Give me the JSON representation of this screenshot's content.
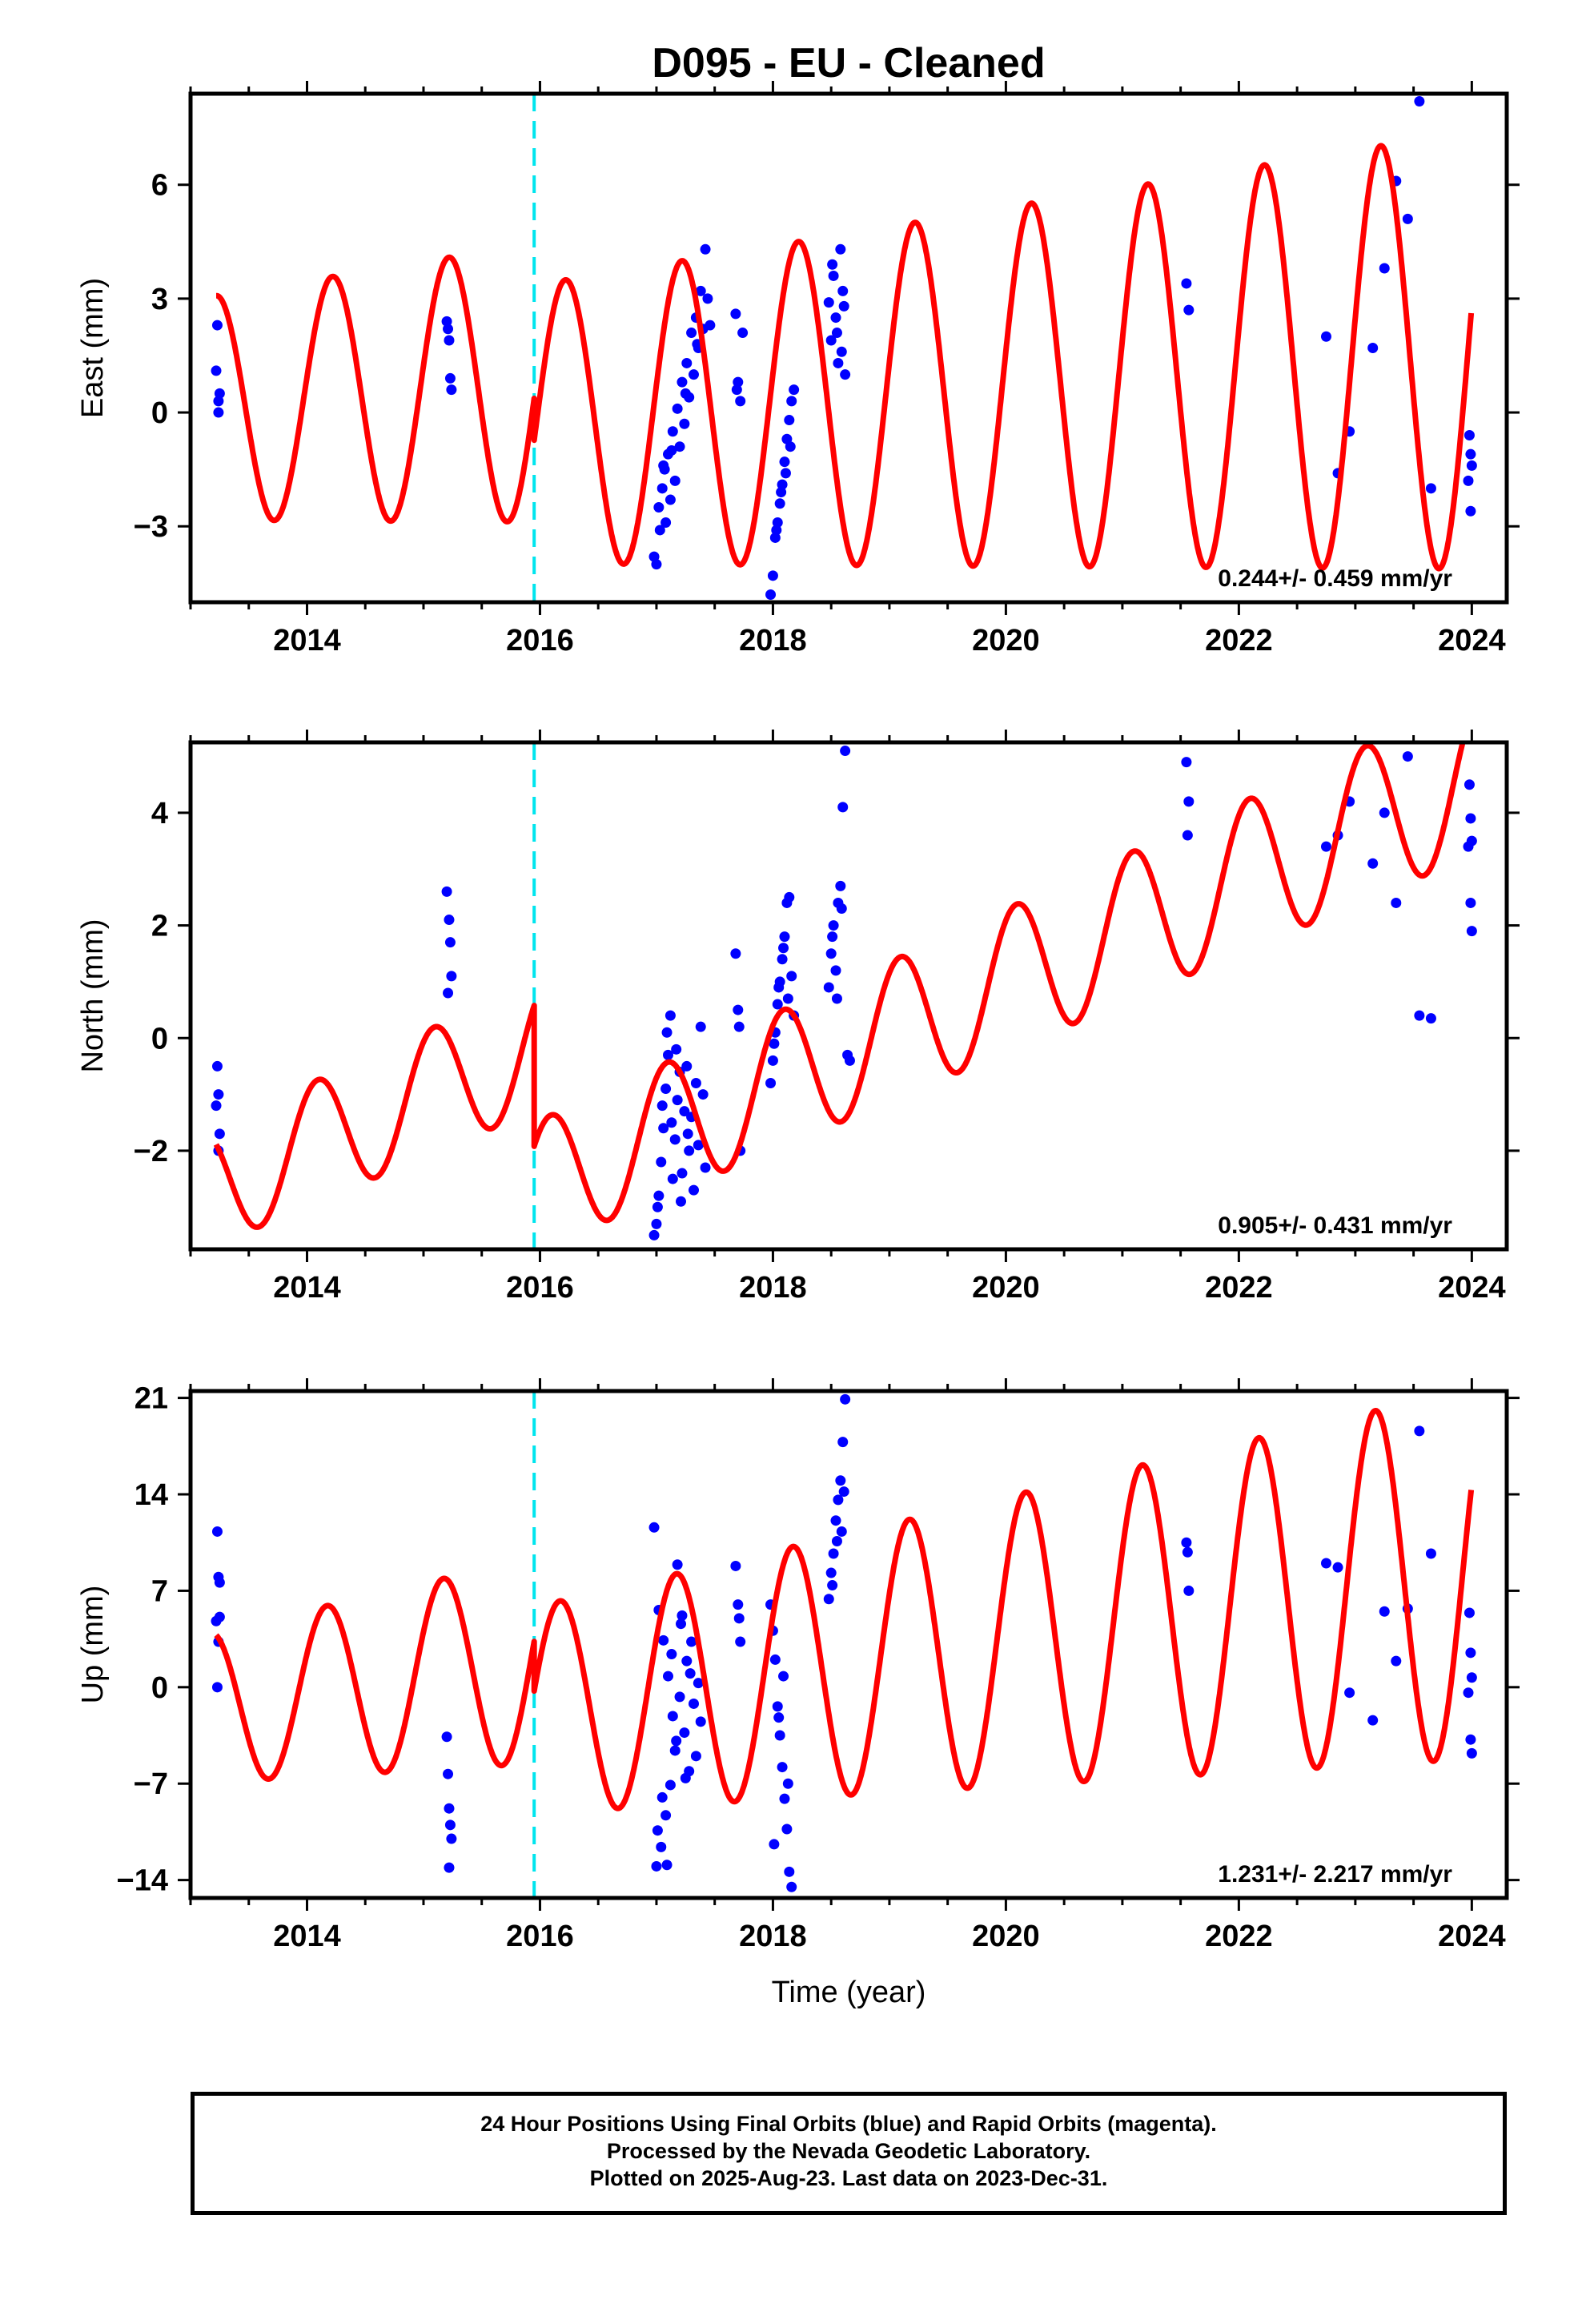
{
  "chart_data": {
    "type": "scatter",
    "title": "D095  - EU - Cleaned",
    "xlabel": "Time (year)",
    "xlim": [
      2013.0,
      2024.3
    ],
    "x_ticks": [
      2014,
      2016,
      2018,
      2020,
      2022,
      2024
    ],
    "x_tick_labels": [
      "2014",
      "2016",
      "2018",
      "2020",
      "2022",
      "2024"
    ],
    "event_line_x": 2015.95,
    "colors": {
      "data": "#0000ff",
      "model": "#ff0000",
      "event": "#00e5ee",
      "frame": "#000000"
    },
    "panels": [
      {
        "id": "east",
        "ylabel": "East (mm)",
        "ylim": [
          -5.0,
          8.4
        ],
        "y_ticks": [
          -3,
          0,
          3,
          6
        ],
        "y_tick_labels": [
          "−3",
          "0",
          "3",
          "6"
        ],
        "rate_label": "0.244+/- 0.459 mm/yr",
        "model": {
          "offset_pre": 0.8,
          "offset_post": -0.3,
          "trend": 0.244,
          "amplitude": 2.9,
          "amp_growth": 0.09,
          "phase": 0.2
        },
        "points": [
          [
            2013.23,
            2.3
          ],
          [
            2013.24,
            0.3
          ],
          [
            2013.25,
            0.5
          ],
          [
            2013.22,
            1.1
          ],
          [
            2013.24,
            0.0
          ],
          [
            2015.2,
            2.4
          ],
          [
            2015.22,
            1.9
          ],
          [
            2015.23,
            0.9
          ],
          [
            2015.24,
            0.6
          ],
          [
            2015.21,
            2.2
          ],
          [
            2016.98,
            -3.8
          ],
          [
            2017.0,
            -4.0
          ],
          [
            2017.02,
            -2.5
          ],
          [
            2017.05,
            -2.0
          ],
          [
            2017.06,
            -1.4
          ],
          [
            2017.08,
            -2.9
          ],
          [
            2017.1,
            -1.1
          ],
          [
            2017.12,
            -2.3
          ],
          [
            2017.14,
            -0.5
          ],
          [
            2017.16,
            -1.8
          ],
          [
            2017.18,
            0.1
          ],
          [
            2017.2,
            -0.9
          ],
          [
            2017.22,
            0.8
          ],
          [
            2017.24,
            -0.3
          ],
          [
            2017.26,
            1.3
          ],
          [
            2017.28,
            0.4
          ],
          [
            2017.3,
            2.1
          ],
          [
            2017.32,
            1.0
          ],
          [
            2017.34,
            2.5
          ],
          [
            2017.36,
            1.7
          ],
          [
            2017.38,
            3.2
          ],
          [
            2017.4,
            2.2
          ],
          [
            2017.42,
            4.3
          ],
          [
            2017.44,
            3.0
          ],
          [
            2017.46,
            2.3
          ],
          [
            2017.03,
            -3.1
          ],
          [
            2017.07,
            -1.5
          ],
          [
            2017.13,
            -1.0
          ],
          [
            2017.25,
            0.5
          ],
          [
            2017.35,
            1.8
          ],
          [
            2017.68,
            2.6
          ],
          [
            2017.7,
            0.8
          ],
          [
            2017.72,
            0.3
          ],
          [
            2017.74,
            2.1
          ],
          [
            2017.69,
            0.6
          ],
          [
            2017.98,
            -4.8
          ],
          [
            2018.0,
            -4.3
          ],
          [
            2018.02,
            -3.3
          ],
          [
            2018.04,
            -2.9
          ],
          [
            2018.06,
            -2.4
          ],
          [
            2018.08,
            -1.9
          ],
          [
            2018.1,
            -1.3
          ],
          [
            2018.12,
            -0.7
          ],
          [
            2018.14,
            -0.2
          ],
          [
            2018.16,
            0.3
          ],
          [
            2018.18,
            0.6
          ],
          [
            2018.03,
            -3.1
          ],
          [
            2018.07,
            -2.1
          ],
          [
            2018.11,
            -1.6
          ],
          [
            2018.15,
            -0.9
          ],
          [
            2018.48,
            2.9
          ],
          [
            2018.5,
            1.9
          ],
          [
            2018.52,
            3.6
          ],
          [
            2018.54,
            2.5
          ],
          [
            2018.56,
            1.3
          ],
          [
            2018.58,
            4.3
          ],
          [
            2018.6,
            3.2
          ],
          [
            2018.62,
            1.0
          ],
          [
            2018.51,
            3.9
          ],
          [
            2018.55,
            2.1
          ],
          [
            2018.59,
            1.6
          ],
          [
            2018.61,
            2.8
          ],
          [
            2021.55,
            3.4
          ],
          [
            2021.57,
            2.7
          ],
          [
            2022.75,
            2.0
          ],
          [
            2022.85,
            -1.6
          ],
          [
            2022.95,
            -0.5
          ],
          [
            2023.15,
            1.7
          ],
          [
            2023.25,
            3.8
          ],
          [
            2023.35,
            6.1
          ],
          [
            2023.45,
            5.1
          ],
          [
            2023.55,
            8.2
          ],
          [
            2023.65,
            -2.0
          ],
          [
            2023.98,
            -0.6
          ],
          [
            2023.99,
            -1.1
          ],
          [
            2024.0,
            -1.4
          ],
          [
            2023.97,
            -1.8
          ],
          [
            2023.99,
            -2.6
          ]
        ]
      },
      {
        "id": "north",
        "ylabel": "North (mm)",
        "ylim": [
          -3.75,
          5.25
        ],
        "y_ticks": [
          -2,
          0,
          2,
          4
        ],
        "y_tick_labels": [
          "−2",
          "0",
          "2",
          "4"
        ],
        "rate_label": "0.905+/- 0.431 mm/yr",
        "model": {
          "offset_pre": -0.1,
          "offset_post": -2.6,
          "trend": 0.905,
          "amplitude": 1.05,
          "amp_growth": 0.03,
          "phase": 1.0
        },
        "points": [
          [
            2013.23,
            -0.5
          ],
          [
            2013.24,
            -1.0
          ],
          [
            2013.25,
            -1.7
          ],
          [
            2013.22,
            -1.2
          ],
          [
            2013.24,
            -2.0
          ],
          [
            2015.2,
            2.6
          ],
          [
            2015.22,
            2.1
          ],
          [
            2015.23,
            1.7
          ],
          [
            2015.24,
            1.1
          ],
          [
            2015.21,
            0.8
          ],
          [
            2016.98,
            -3.5
          ],
          [
            2017.0,
            -3.3
          ],
          [
            2017.02,
            -2.8
          ],
          [
            2017.04,
            -2.2
          ],
          [
            2017.06,
            -1.6
          ],
          [
            2017.08,
            -0.9
          ],
          [
            2017.1,
            -0.3
          ],
          [
            2017.12,
            0.4
          ],
          [
            2017.14,
            -2.5
          ],
          [
            2017.16,
            -1.8
          ],
          [
            2017.18,
            -1.1
          ],
          [
            2017.2,
            -0.6
          ],
          [
            2017.22,
            -2.4
          ],
          [
            2017.24,
            -1.3
          ],
          [
            2017.26,
            -0.5
          ],
          [
            2017.28,
            -2.0
          ],
          [
            2017.3,
            -1.4
          ],
          [
            2017.32,
            -2.7
          ],
          [
            2017.34,
            -0.8
          ],
          [
            2017.36,
            -1.9
          ],
          [
            2017.38,
            0.2
          ],
          [
            2017.4,
            -1.0
          ],
          [
            2017.42,
            -2.3
          ],
          [
            2017.01,
            -3.0
          ],
          [
            2017.05,
            -1.2
          ],
          [
            2017.09,
            0.1
          ],
          [
            2017.13,
            -1.5
          ],
          [
            2017.17,
            -0.2
          ],
          [
            2017.21,
            -2.9
          ],
          [
            2017.27,
            -1.7
          ],
          [
            2017.68,
            1.5
          ],
          [
            2017.7,
            0.5
          ],
          [
            2017.72,
            -2.0
          ],
          [
            2017.71,
            0.2
          ],
          [
            2017.98,
            -0.8
          ],
          [
            2018.0,
            -0.4
          ],
          [
            2018.02,
            0.1
          ],
          [
            2018.04,
            0.6
          ],
          [
            2018.06,
            1.0
          ],
          [
            2018.08,
            1.4
          ],
          [
            2018.1,
            1.8
          ],
          [
            2018.12,
            2.4
          ],
          [
            2018.14,
            2.5
          ],
          [
            2018.16,
            1.1
          ],
          [
            2018.18,
            0.4
          ],
          [
            2018.01,
            -0.1
          ],
          [
            2018.05,
            0.9
          ],
          [
            2018.09,
            1.6
          ],
          [
            2018.13,
            0.7
          ],
          [
            2018.48,
            0.9
          ],
          [
            2018.5,
            1.5
          ],
          [
            2018.52,
            2.0
          ],
          [
            2018.54,
            1.2
          ],
          [
            2018.56,
            2.4
          ],
          [
            2018.58,
            2.7
          ],
          [
            2018.6,
            4.1
          ],
          [
            2018.62,
            5.1
          ],
          [
            2018.64,
            -0.3
          ],
          [
            2018.66,
            -0.4
          ],
          [
            2018.51,
            1.8
          ],
          [
            2018.55,
            0.7
          ],
          [
            2018.59,
            2.3
          ],
          [
            2021.55,
            4.9
          ],
          [
            2021.57,
            4.2
          ],
          [
            2021.56,
            3.6
          ],
          [
            2022.75,
            3.4
          ],
          [
            2022.85,
            3.6
          ],
          [
            2022.95,
            4.2
          ],
          [
            2023.15,
            3.1
          ],
          [
            2023.25,
            4.0
          ],
          [
            2023.35,
            2.4
          ],
          [
            2023.45,
            5.0
          ],
          [
            2023.55,
            0.4
          ],
          [
            2023.65,
            0.35
          ],
          [
            2023.98,
            4.5
          ],
          [
            2023.99,
            3.9
          ],
          [
            2024.0,
            3.5
          ],
          [
            2023.97,
            3.4
          ],
          [
            2023.99,
            2.4
          ],
          [
            2024.0,
            1.9
          ]
        ]
      },
      {
        "id": "up",
        "ylabel": "Up (mm)",
        "ylim": [
          -15.3,
          21.5
        ],
        "y_ticks": [
          -14,
          -7,
          0,
          7,
          14,
          21
        ],
        "y_tick_labels": [
          "−14",
          "−7",
          "0",
          "7",
          "14",
          "21"
        ],
        "rate_label": "1.231+/- 2.217 mm/yr",
        "model": {
          "offset_pre": 2.0,
          "offset_post": -1.6,
          "trend": 1.231,
          "amplitude": 5.3,
          "amp_growth": 0.14,
          "phase": 0.5
        },
        "points": [
          [
            2013.23,
            11.3
          ],
          [
            2013.24,
            8.0
          ],
          [
            2013.25,
            5.1
          ],
          [
            2013.22,
            4.8
          ],
          [
            2013.24,
            3.3
          ],
          [
            2013.23,
            0.0
          ],
          [
            2013.25,
            7.6
          ],
          [
            2015.2,
            -3.6
          ],
          [
            2015.21,
            -6.3
          ],
          [
            2015.22,
            -8.8
          ],
          [
            2015.23,
            -10.0
          ],
          [
            2015.24,
            -11.0
          ],
          [
            2015.22,
            -13.1
          ],
          [
            2016.98,
            11.6
          ],
          [
            2017.0,
            -13.0
          ],
          [
            2017.02,
            5.6
          ],
          [
            2017.04,
            -11.6
          ],
          [
            2017.06,
            3.4
          ],
          [
            2017.08,
            -9.3
          ],
          [
            2017.1,
            0.8
          ],
          [
            2017.12,
            -7.1
          ],
          [
            2017.14,
            -2.1
          ],
          [
            2017.16,
            -4.6
          ],
          [
            2017.18,
            8.9
          ],
          [
            2017.2,
            -0.7
          ],
          [
            2017.22,
            5.2
          ],
          [
            2017.24,
            -3.3
          ],
          [
            2017.26,
            1.9
          ],
          [
            2017.28,
            -6.1
          ],
          [
            2017.3,
            3.3
          ],
          [
            2017.32,
            -1.2
          ],
          [
            2017.34,
            -5.0
          ],
          [
            2017.36,
            0.3
          ],
          [
            2017.38,
            -2.5
          ],
          [
            2017.01,
            -10.4
          ],
          [
            2017.05,
            -8.0
          ],
          [
            2017.09,
            -12.9
          ],
          [
            2017.13,
            2.4
          ],
          [
            2017.17,
            -3.9
          ],
          [
            2017.21,
            4.6
          ],
          [
            2017.25,
            -6.6
          ],
          [
            2017.29,
            1.0
          ],
          [
            2017.68,
            8.8
          ],
          [
            2017.7,
            6.0
          ],
          [
            2017.72,
            3.3
          ],
          [
            2017.71,
            5.0
          ],
          [
            2017.98,
            6.0
          ],
          [
            2018.0,
            4.1
          ],
          [
            2018.02,
            2.0
          ],
          [
            2018.04,
            -1.4
          ],
          [
            2018.06,
            -3.5
          ],
          [
            2018.08,
            -5.8
          ],
          [
            2018.1,
            -8.1
          ],
          [
            2018.12,
            -10.3
          ],
          [
            2018.14,
            -13.4
          ],
          [
            2018.16,
            -14.5
          ],
          [
            2018.01,
            -11.4
          ],
          [
            2018.05,
            -2.2
          ],
          [
            2018.09,
            0.8
          ],
          [
            2018.13,
            -7.0
          ],
          [
            2018.48,
            6.4
          ],
          [
            2018.5,
            8.3
          ],
          [
            2018.52,
            9.7
          ],
          [
            2018.54,
            12.1
          ],
          [
            2018.56,
            13.6
          ],
          [
            2018.58,
            15.0
          ],
          [
            2018.6,
            17.8
          ],
          [
            2018.62,
            20.9
          ],
          [
            2018.51,
            7.4
          ],
          [
            2018.55,
            10.6
          ],
          [
            2018.59,
            11.3
          ],
          [
            2018.61,
            14.2
          ],
          [
            2021.55,
            10.5
          ],
          [
            2021.57,
            7.0
          ],
          [
            2021.56,
            9.8
          ],
          [
            2022.75,
            9.0
          ],
          [
            2022.85,
            8.7
          ],
          [
            2022.95,
            -0.4
          ],
          [
            2023.15,
            -2.4
          ],
          [
            2023.25,
            5.5
          ],
          [
            2023.35,
            1.9
          ],
          [
            2023.45,
            5.7
          ],
          [
            2023.55,
            18.6
          ],
          [
            2023.65,
            9.7
          ],
          [
            2023.98,
            5.4
          ],
          [
            2023.99,
            2.5
          ],
          [
            2024.0,
            0.7
          ],
          [
            2023.97,
            -0.4
          ],
          [
            2023.99,
            -3.8
          ],
          [
            2024.0,
            -4.8
          ]
        ]
      }
    ]
  },
  "footer": {
    "line1": "24 Hour Positions Using Final Orbits (blue) and Rapid Orbits (magenta).",
    "line2": "Processed by the Nevada Geodetic Laboratory.",
    "line3": "Plotted on 2025-Aug-23. Last data on 2023-Dec-31."
  }
}
